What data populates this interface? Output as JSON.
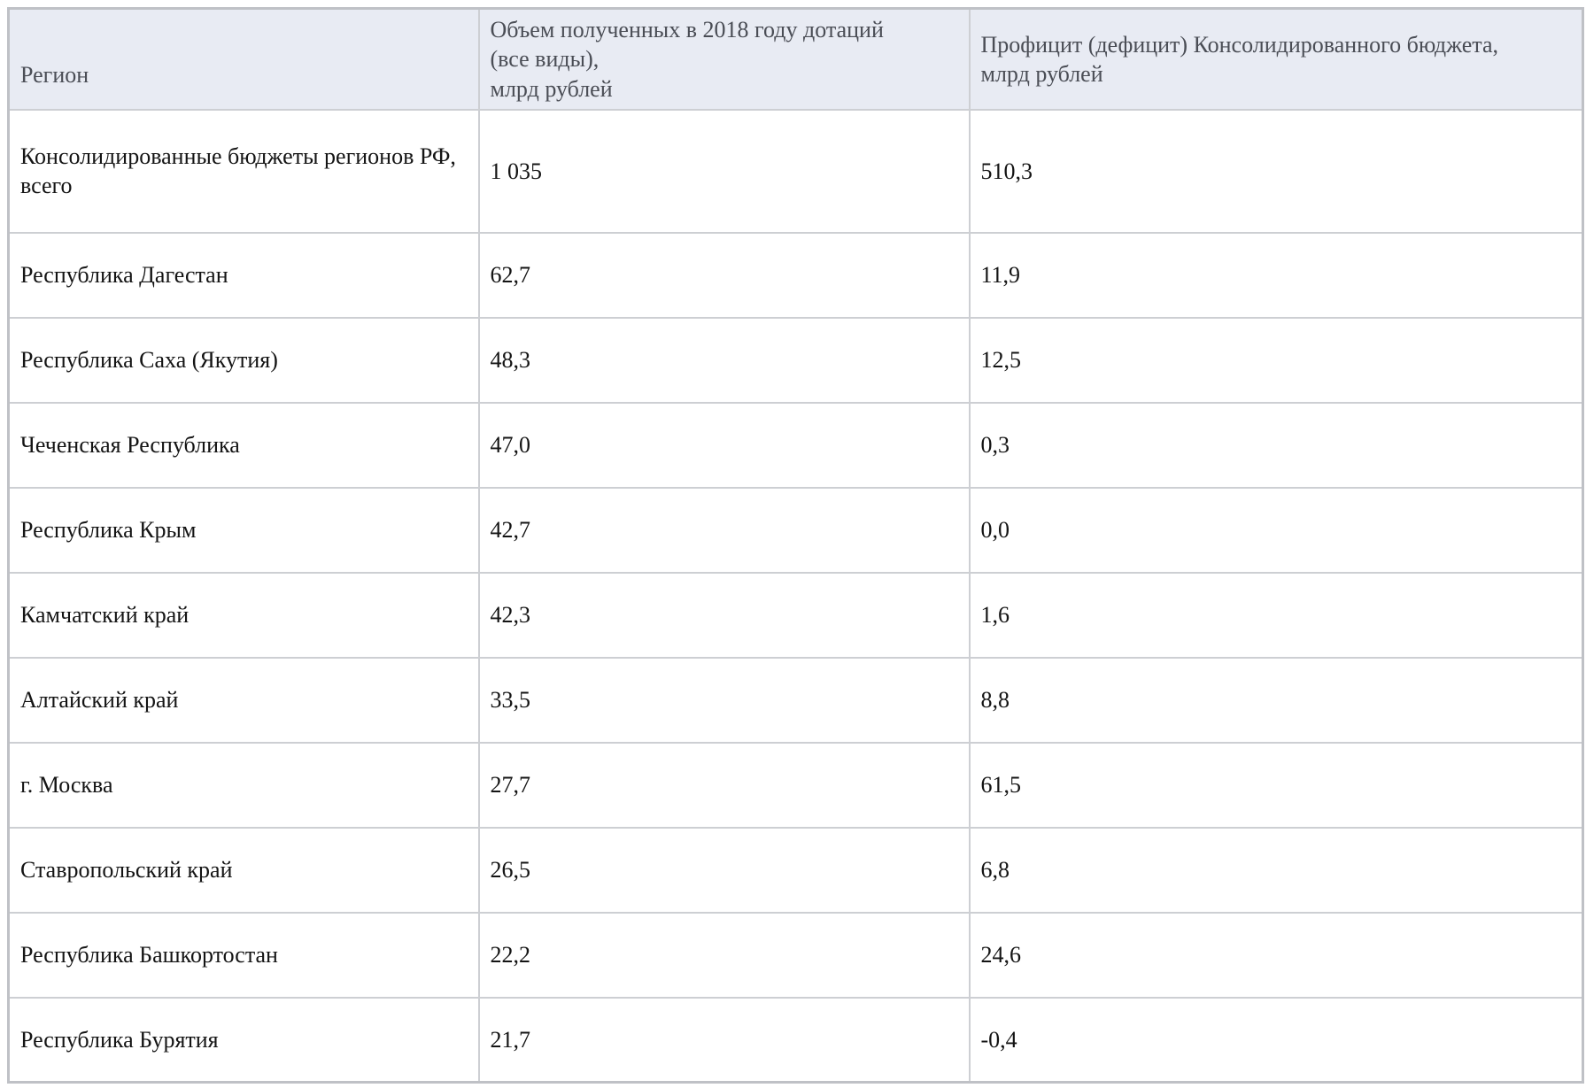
{
  "colors": {
    "header_bg": "#e8ebf3",
    "header_text": "#4a4d55",
    "body_text": "#141414",
    "outer_border": "#bfc1c6",
    "inner_border": "#cdcfd3"
  },
  "table": {
    "headers": {
      "region": "Регион",
      "subsidies": "Объем полученных в 2018 году дотаций\n(все виды),\nмлрд рублей",
      "surplus": "Профицит (дефицит) Консолидированного бюджета,\nмлрд рублей"
    },
    "rows": [
      {
        "region": "Консолидированные бюджеты регионов РФ, всего",
        "subsidies": "1 035",
        "surplus": "510,3"
      },
      {
        "region": "Республика Дагестан",
        "subsidies": "62,7",
        "surplus": "11,9"
      },
      {
        "region": "Республика Саха (Якутия)",
        "subsidies": "48,3",
        "surplus": "12,5"
      },
      {
        "region": "Чеченская Республика",
        "subsidies": "47,0",
        "surplus": "0,3"
      },
      {
        "region": "Республика Крым",
        "subsidies": "42,7",
        "surplus": "0,0"
      },
      {
        "region": "Камчатский край",
        "subsidies": "42,3",
        "surplus": "1,6"
      },
      {
        "region": "Алтайский край",
        "subsidies": "33,5",
        "surplus": "8,8"
      },
      {
        "region": "г. Москва",
        "subsidies": "27,7",
        "surplus": "61,5"
      },
      {
        "region": "Ставропольский край",
        "subsidies": "26,5",
        "surplus": "6,8"
      },
      {
        "region": "Республика Башкортостан",
        "subsidies": "22,2",
        "surplus": "24,6"
      },
      {
        "region": "Республика Бурятия",
        "subsidies": "21,7",
        "surplus": "-0,4"
      }
    ]
  }
}
